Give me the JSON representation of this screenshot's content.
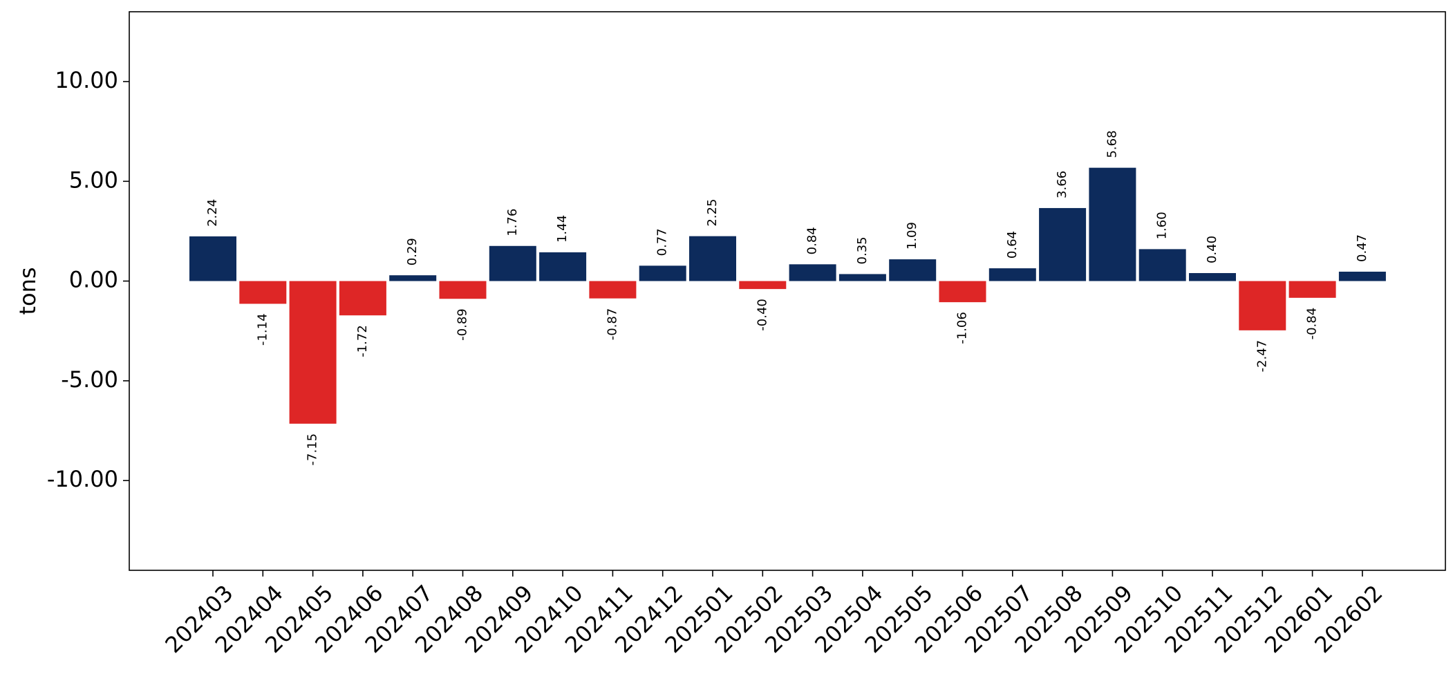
{
  "chart_data": {
    "type": "bar",
    "title": "",
    "xlabel": "",
    "ylabel": "tons",
    "ylim": [
      -14.5,
      13.5
    ],
    "yticks": [
      -10,
      -5,
      0,
      5,
      10
    ],
    "ytick_labels": [
      "-10.00",
      "-5.00",
      "0.00",
      "5.00",
      "10.00"
    ],
    "grid": false,
    "colors": {
      "positive": "#0d2b5c",
      "negative": "#de2626"
    },
    "categories": [
      "202403",
      "202404",
      "202405",
      "202406",
      "202407",
      "202408",
      "202409",
      "202410",
      "202411",
      "202412",
      "202501",
      "202502",
      "202503",
      "202504",
      "202505",
      "202506",
      "202507",
      "202508",
      "202509",
      "202510",
      "202511",
      "202512",
      "202601",
      "202602"
    ],
    "values": [
      2.24,
      -1.14,
      -7.15,
      -1.72,
      0.29,
      -0.89,
      1.76,
      1.44,
      -0.87,
      0.77,
      2.25,
      -0.4,
      0.84,
      0.35,
      1.09,
      -1.06,
      0.64,
      3.66,
      5.68,
      1.6,
      0.4,
      -2.47,
      -0.84,
      0.47
    ],
    "value_labels": [
      "2.24",
      "-1.14",
      "-7.15",
      "-1.72",
      "0.29",
      "-0.89",
      "1.76",
      "1.44",
      "-0.87",
      "0.77",
      "2.25",
      "-0.40",
      "0.84",
      "0.35",
      "1.09",
      "-1.06",
      "0.64",
      "3.66",
      "5.68",
      "1.60",
      "0.40",
      "-2.47",
      "-0.84",
      "0.47"
    ]
  }
}
